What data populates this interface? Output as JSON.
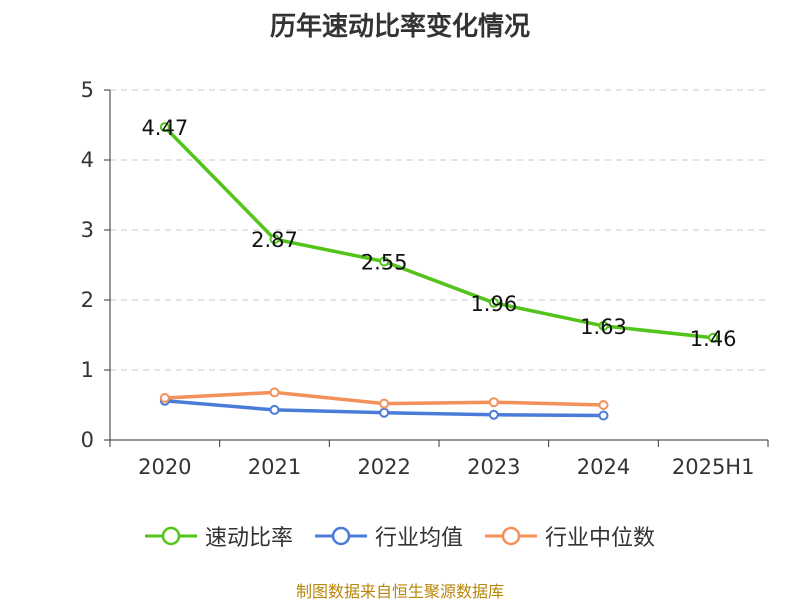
{
  "chart_data": {
    "type": "line",
    "title": "历年速动比率变化情况",
    "categories": [
      "2020",
      "2021",
      "2022",
      "2023",
      "2024",
      "2025H1"
    ],
    "ylim": [
      0,
      5
    ],
    "yticks": [
      "0",
      "1",
      "2",
      "3",
      "4",
      "5"
    ],
    "grid": true,
    "legend_position": "bottom",
    "series": [
      {
        "name": "速动比率",
        "color": "#52c41a",
        "values": [
          4.47,
          2.87,
          2.55,
          1.96,
          1.63,
          1.46
        ],
        "labels": [
          "4.47",
          "2.87",
          "2.55",
          "1.96",
          "1.63",
          "1.46"
        ]
      },
      {
        "name": "行业均值",
        "color": "#4a7bd8",
        "values": [
          0.56,
          0.43,
          0.39,
          0.36,
          0.35,
          null
        ]
      },
      {
        "name": "行业中位数",
        "color": "#f4905a",
        "values": [
          0.6,
          0.68,
          0.52,
          0.54,
          0.5,
          null
        ]
      }
    ]
  },
  "footer": {
    "source": "制图数据来自恒生聚源数据库"
  }
}
